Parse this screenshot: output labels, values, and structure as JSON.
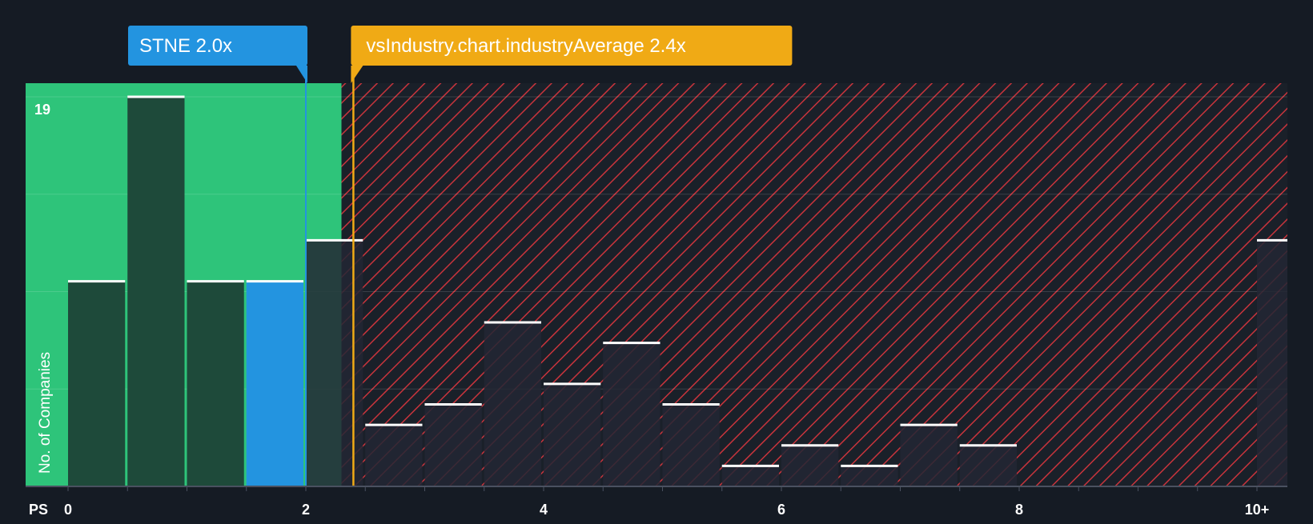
{
  "chart_data": {
    "type": "bar",
    "xlabel": "PS",
    "ylabel": "No. of Companies",
    "ylim": [
      0,
      19
    ],
    "y_max_label": "19",
    "bin_width": 0.5,
    "x_ticks": [
      {
        "value": 0,
        "label": "0"
      },
      {
        "value": 2,
        "label": "2"
      },
      {
        "value": 4,
        "label": "4"
      },
      {
        "value": 6,
        "label": "6"
      },
      {
        "value": 8,
        "label": "8"
      },
      {
        "value": 10,
        "label": "10+"
      }
    ],
    "bins": [
      {
        "start": 0.0,
        "count": 10
      },
      {
        "start": 0.5,
        "count": 19
      },
      {
        "start": 1.0,
        "count": 10
      },
      {
        "start": 1.5,
        "count": 10,
        "highlight": true
      },
      {
        "start": 2.0,
        "count": 12
      },
      {
        "start": 2.5,
        "count": 3
      },
      {
        "start": 3.0,
        "count": 4
      },
      {
        "start": 3.5,
        "count": 8
      },
      {
        "start": 4.0,
        "count": 5
      },
      {
        "start": 4.5,
        "count": 7
      },
      {
        "start": 5.0,
        "count": 4
      },
      {
        "start": 5.5,
        "count": 1
      },
      {
        "start": 6.0,
        "count": 2
      },
      {
        "start": 6.5,
        "count": 1
      },
      {
        "start": 7.0,
        "count": 3
      },
      {
        "start": 7.5,
        "count": 2
      },
      {
        "start": 10.0,
        "count": 12
      }
    ],
    "company": {
      "ticker": "STNE",
      "value": 2.0,
      "label": "STNE 2.0x"
    },
    "industry_average": {
      "value": 2.4,
      "label": "vsIndustry.chart.industryAverage 2.4x"
    },
    "fair_zone_end": 2.3,
    "colors": {
      "background": "#151b24",
      "fair_zone": "#2ec47a",
      "bar_fair": "#1e4a3a",
      "bar_over": "#232734",
      "bar_highlight": "#2394e0",
      "hatch": "#c8343c",
      "company_marker": "#2394e0",
      "industry_marker": "#f0aa15",
      "bar_top": "#ffffff",
      "axis_text": "#ffffff"
    }
  }
}
